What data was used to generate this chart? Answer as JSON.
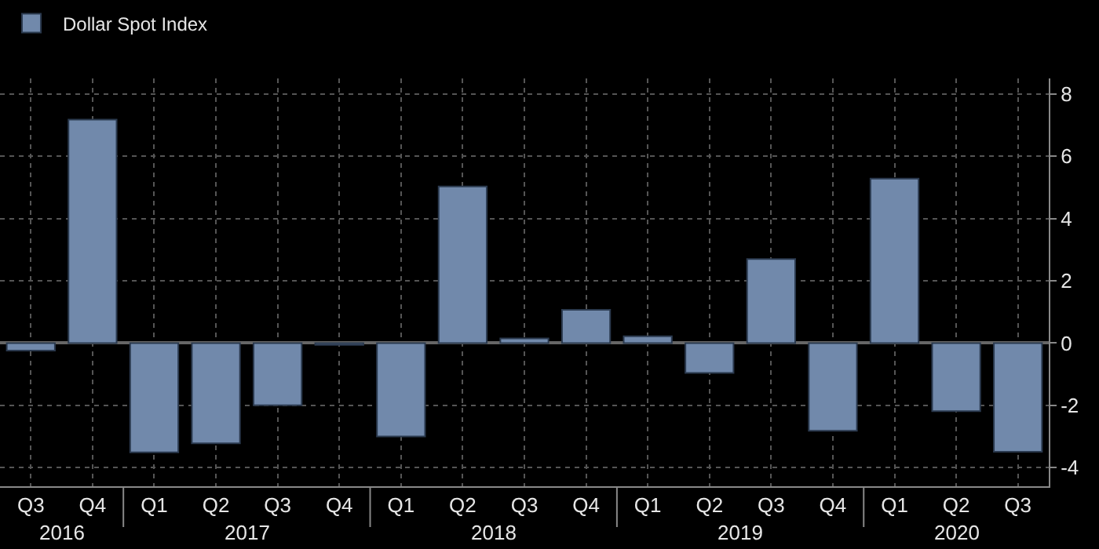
{
  "chart_data": {
    "type": "bar",
    "categories": [
      "Q3",
      "Q4",
      "Q1",
      "Q2",
      "Q3",
      "Q4",
      "Q1",
      "Q2",
      "Q3",
      "Q4",
      "Q1",
      "Q2",
      "Q3",
      "Q4",
      "Q1",
      "Q2",
      "Q3"
    ],
    "series": [
      {
        "name": "Dollar Spot Index",
        "color": "#7189ab",
        "values": [
          -0.24,
          7.18,
          -3.51,
          -3.22,
          -2.0,
          -0.06,
          -3.0,
          5.03,
          0.15,
          1.07,
          0.22,
          -0.96,
          2.7,
          -2.82,
          5.28,
          -2.19,
          -3.49
        ]
      }
    ],
    "annotations": [
      "2016",
      "2017",
      "2018",
      "2019",
      "2020"
    ],
    "ylim": [
      -4.6,
      8.5
    ],
    "yticks": [
      -4,
      -2,
      0,
      2,
      4,
      6,
      8
    ],
    "grid": true,
    "legend": "top left"
  }
}
